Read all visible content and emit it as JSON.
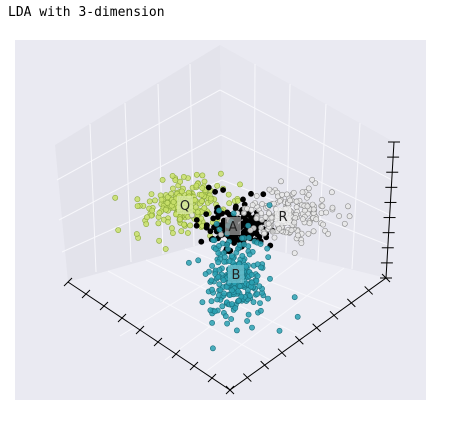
{
  "page": {
    "title": "LDA with 3-dimension"
  },
  "colors": {
    "background": "#eaeaf2",
    "pane_left": "#e3e3eb",
    "pane_right": "#e6e6ee",
    "pane_floor": "#ededf4",
    "grid": "#f7f7fb",
    "axis": "#000000"
  },
  "chart_data": {
    "type": "scatter",
    "projection": "3d",
    "grid": true,
    "legend": "none",
    "title": "",
    "xlabel": "",
    "ylabel": "",
    "zlabel": "",
    "tick_labels": "none",
    "clusters": [
      {
        "label": "Q",
        "color": "#c9e06a",
        "edge": "#8aa83a",
        "size": 230
      },
      {
        "label": "A",
        "color": "#000000",
        "edge": "#000000",
        "size": 140
      },
      {
        "label": "R",
        "color": "#e8e8e8",
        "edge": "#8a8a8a",
        "size": 200
      },
      {
        "label": "B",
        "color": "#2aa1b3",
        "edge": "#1a6f7d",
        "size": 260
      }
    ]
  }
}
